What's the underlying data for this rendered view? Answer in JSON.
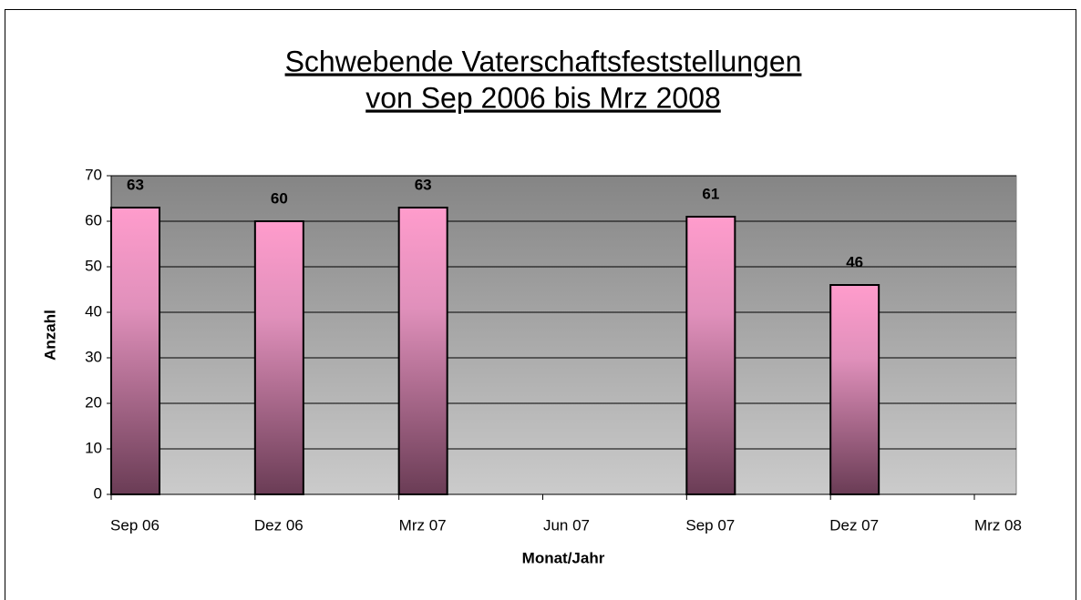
{
  "chart_data": {
    "type": "bar",
    "title": "Schwebende Vaterschaftsfeststellungen",
    "subtitle": "von Sep 2006 bis Mrz 2008",
    "x_label": "Monat/Jahr",
    "y_label": "Anzahl",
    "categories": [
      "Sep 06",
      "Dez 06",
      "Mrz 07",
      "Jun 07",
      "Sep 07",
      "Dez 07",
      "Mrz 08"
    ],
    "values": [
      63,
      60,
      63,
      null,
      61,
      46,
      null
    ],
    "color": "#ff99cc",
    "ylim": [
      0,
      70
    ],
    "yticks": [
      0,
      10,
      20,
      30,
      40,
      50,
      60,
      70
    ],
    "grid": true
  }
}
